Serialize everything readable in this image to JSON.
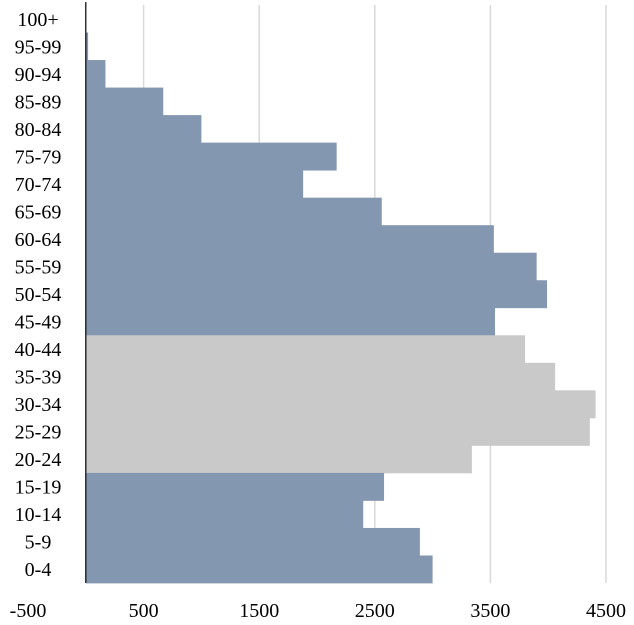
{
  "chart_data": {
    "type": "bar",
    "orientation": "horizontal",
    "categories": [
      "100+",
      "95-99",
      "90-94",
      "85-89",
      "80-84",
      "75-79",
      "70-74",
      "65-69",
      "60-64",
      "55-59",
      "50-54",
      "45-49",
      "40-44",
      "35-39",
      "30-34",
      "25-29",
      "20-24",
      "15-19",
      "10-14",
      "5-9",
      "0-4"
    ],
    "values": [
      0,
      20,
      170,
      670,
      1000,
      2170,
      1880,
      2560,
      3530,
      3900,
      3990,
      3540,
      3800,
      4060,
      4410,
      4360,
      3340,
      2580,
      2400,
      2890,
      3000
    ],
    "highlighted_categories": [
      "40-44",
      "35-39",
      "30-34",
      "25-29",
      "20-24"
    ],
    "colors": {
      "default": "#8497b0",
      "highlight": "#c9c9c9",
      "grid": "#d9d9d9",
      "axis": "#000000"
    },
    "x_ticks": [
      "-500",
      "500",
      "1500",
      "2500",
      "3500",
      "4500"
    ],
    "xlim": [
      -500,
      4500
    ],
    "grid": true,
    "title": "",
    "xlabel": "",
    "ylabel": ""
  }
}
